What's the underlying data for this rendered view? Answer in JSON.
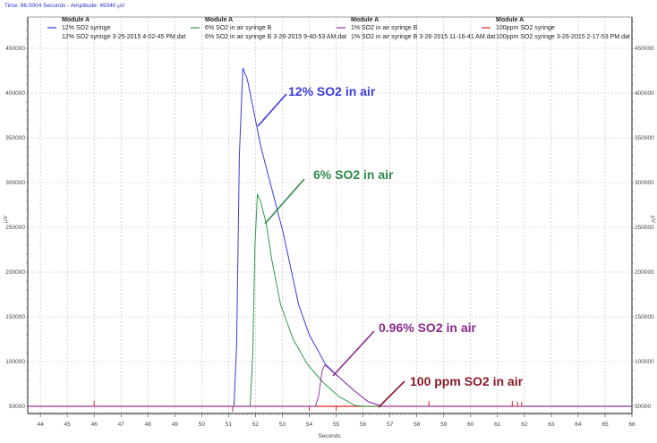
{
  "status_text": "Time: 66.0004 Seconds - Amplitude: 49340 µV",
  "chart_data": {
    "type": "line",
    "xlabel": "Seconds",
    "ylabel": "µV",
    "xlim": [
      43.53,
      66
    ],
    "ylim": [
      42000,
      485000
    ],
    "x_ticks": [
      44,
      45,
      46,
      47,
      48,
      49,
      50,
      51,
      52,
      53,
      54,
      55,
      56,
      57,
      58,
      59,
      60,
      61,
      62,
      63,
      64,
      65,
      66
    ],
    "y_ticks": [
      50000,
      100000,
      150000,
      200000,
      250000,
      300000,
      350000,
      400000,
      450000
    ],
    "grid": true,
    "legend_placement": "top",
    "series": [
      {
        "name": "12% SO2 syringe",
        "module": "Module A",
        "file": "12% SO2 syringe 3-25-2015 4-02-45 PM.dat",
        "color": "#3a3ae0",
        "points": [
          [
            43.53,
            50000
          ],
          [
            51.2,
            50000
          ],
          [
            51.3,
            120000
          ],
          [
            51.4,
            330000
          ],
          [
            51.53,
            428000
          ],
          [
            51.7,
            415000
          ],
          [
            52.2,
            340000
          ],
          [
            53.03,
            244000
          ],
          [
            53.6,
            164000
          ],
          [
            54.0,
            130000
          ],
          [
            54.6,
            97000
          ],
          [
            55.2,
            80000
          ],
          [
            55.73,
            66000
          ],
          [
            56.2,
            55000
          ],
          [
            56.73,
            50000
          ],
          [
            66,
            50000
          ]
        ]
      },
      {
        "name": "6% SO2 in air syringe B",
        "module": "Module A",
        "file": "6% SO2 in air syringe B 3-26-2015 9-40-53 AM.dat",
        "color": "#2e9a4a",
        "points": [
          [
            43.53,
            50000
          ],
          [
            51.8,
            50000
          ],
          [
            51.9,
            110000
          ],
          [
            51.98,
            230000
          ],
          [
            52.07,
            287000
          ],
          [
            52.2,
            278000
          ],
          [
            52.4,
            254000
          ],
          [
            52.6,
            215000
          ],
          [
            52.93,
            164000
          ],
          [
            53.4,
            125000
          ],
          [
            53.93,
            97000
          ],
          [
            54.5,
            77000
          ],
          [
            55.1,
            61000
          ],
          [
            55.7,
            51000
          ],
          [
            56.0,
            50000
          ],
          [
            66,
            50000
          ]
        ]
      },
      {
        "name": "1% SO2 in air syringe B",
        "module": "Module A",
        "file": "1% SO2 in air syringe B 3-26-2015 11-16-41 AM.dat",
        "color": "#9a3aa8",
        "points": [
          [
            43.53,
            50000
          ],
          [
            54.23,
            50000
          ],
          [
            54.35,
            62000
          ],
          [
            54.48,
            90000
          ],
          [
            54.57,
            96000
          ],
          [
            54.7,
            93000
          ],
          [
            55.2,
            80000
          ],
          [
            55.73,
            66000
          ],
          [
            56.2,
            55000
          ],
          [
            56.73,
            50000
          ],
          [
            66,
            50000
          ]
        ]
      },
      {
        "name": "100ppm SO2 syringe",
        "module": "Module A",
        "file": "100ppm SO2 syringe  3-26-2015 2-17-53 PM.dat",
        "color": "#e02020",
        "points": [
          [
            43.53,
            50000
          ],
          [
            66,
            50000
          ]
        ],
        "spikes": [
          [
            46.0,
            56000
          ],
          [
            51.15,
            44000
          ],
          [
            54.0,
            45000
          ],
          [
            55.0,
            45000
          ],
          [
            58.45,
            56000
          ],
          [
            61.55,
            56000
          ],
          [
            61.75,
            55000
          ],
          [
            61.9,
            55000
          ]
        ]
      }
    ],
    "annotations": [
      {
        "text": "12% SO2 in air",
        "color": "#3a3ae0"
      },
      {
        "text": "6% SO2 in air",
        "color": "#2e8a4a"
      },
      {
        "text": "0.96% SO2 in air",
        "color": "#8a2a8a"
      },
      {
        "text": "100 ppm SO2 in air",
        "color": "#8a1a2a"
      }
    ]
  }
}
